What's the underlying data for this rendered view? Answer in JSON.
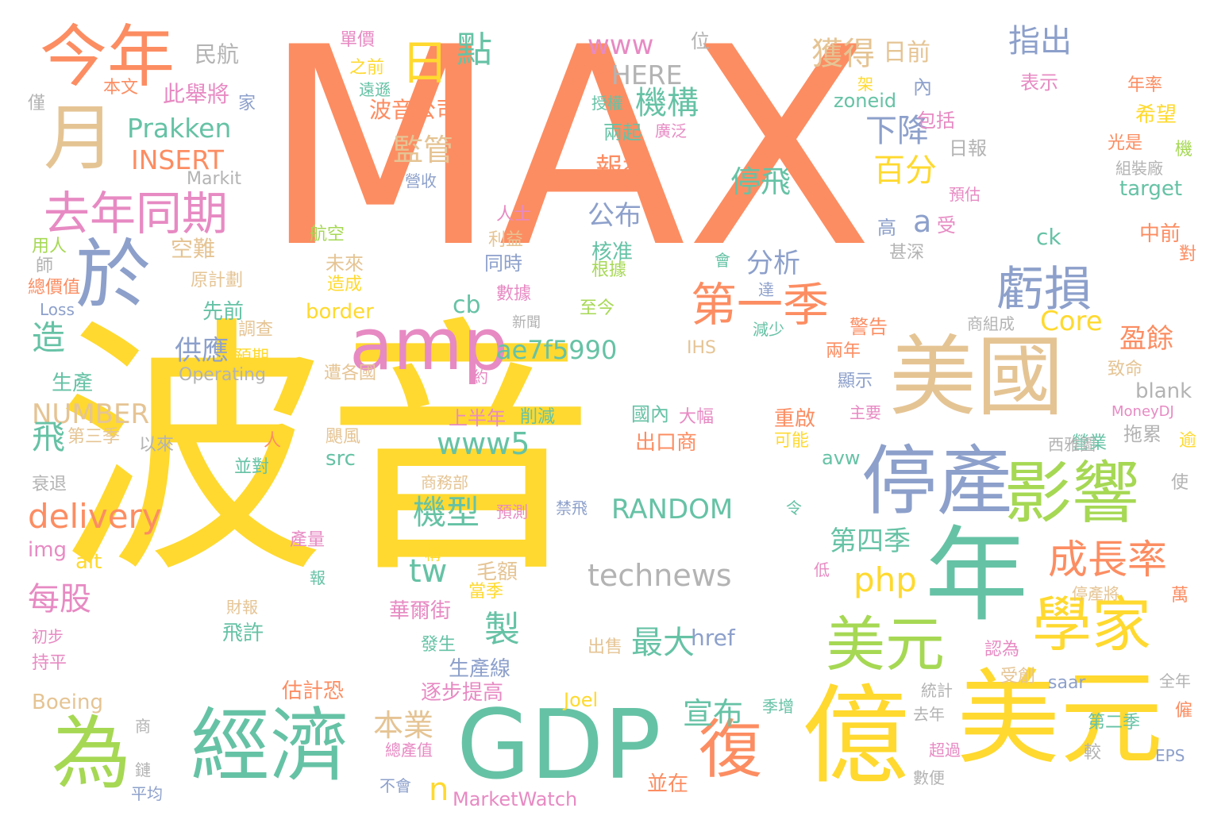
{
  "colors": {
    "orange": "#fc8d62",
    "yellow": "#ffd92f",
    "teal": "#66c2a5",
    "blue": "#8da0cb",
    "pink": "#e78ac3",
    "green": "#a6d854",
    "tan": "#e5c494",
    "gray": "#b3b3b3"
  },
  "words": [
    {
      "text": "MAX",
      "c": "orange"
    },
    {
      "text": "波音",
      "c": "yellow"
    },
    {
      "text": "美國",
      "c": "tan"
    },
    {
      "text": "億",
      "c": "yellow"
    },
    {
      "text": "美元",
      "c": "yellow"
    },
    {
      "text": "GDP",
      "c": "teal"
    },
    {
      "text": "經濟",
      "c": "teal"
    },
    {
      "text": "為",
      "c": "green"
    },
    {
      "text": "年",
      "c": "teal"
    },
    {
      "text": "停產",
      "c": "blue"
    },
    {
      "text": "影響",
      "c": "green"
    },
    {
      "text": "學家",
      "c": "yellow"
    },
    {
      "text": "美元",
      "c": "green"
    },
    {
      "text": "復",
      "c": "orange"
    },
    {
      "text": "今年",
      "c": "orange"
    },
    {
      "text": "月",
      "c": "tan"
    },
    {
      "text": "於",
      "c": "blue"
    },
    {
      "text": "日",
      "c": "yellow"
    },
    {
      "text": "去年同期",
      "c": "pink"
    },
    {
      "text": "amp",
      "c": "pink"
    },
    {
      "text": "第一季",
      "c": "orange"
    },
    {
      "text": "虧損",
      "c": "blue"
    },
    {
      "text": "成長率",
      "c": "orange"
    },
    {
      "text": "technews",
      "c": "gray"
    },
    {
      "text": "delivery",
      "c": "orange"
    },
    {
      "text": "www5",
      "c": "teal"
    },
    {
      "text": "ae7f5990",
      "c": "teal"
    },
    {
      "text": "RANDOM",
      "c": "teal"
    },
    {
      "text": "Prakken",
      "c": "teal"
    },
    {
      "text": "INSERT",
      "c": "orange"
    },
    {
      "text": "NUMBER",
      "c": "tan"
    },
    {
      "text": "www",
      "c": "pink"
    },
    {
      "text": "HERE",
      "c": "gray"
    },
    {
      "text": "機構",
      "c": "teal"
    },
    {
      "text": "點",
      "c": "teal"
    },
    {
      "text": "獲得",
      "c": "tan"
    },
    {
      "text": "日前",
      "c": "tan"
    },
    {
      "text": "指出",
      "c": "blue"
    },
    {
      "text": "下降",
      "c": "blue"
    },
    {
      "text": "百分",
      "c": "yellow"
    },
    {
      "text": "監管",
      "c": "tan"
    },
    {
      "text": "報導",
      "c": "orange"
    },
    {
      "text": "停飛",
      "c": "teal"
    },
    {
      "text": "公布",
      "c": "blue"
    },
    {
      "text": "分析",
      "c": "blue"
    },
    {
      "text": "供應",
      "c": "blue"
    },
    {
      "text": "造",
      "c": "teal"
    },
    {
      "text": "飛",
      "c": "teal"
    },
    {
      "text": "每股",
      "c": "pink"
    },
    {
      "text": "機型",
      "c": "teal"
    },
    {
      "text": "tw",
      "c": "teal"
    },
    {
      "text": "php",
      "c": "yellow"
    },
    {
      "text": "第四季",
      "c": "teal"
    },
    {
      "text": "製",
      "c": "teal"
    },
    {
      "text": "最大",
      "c": "teal"
    },
    {
      "text": "宣布",
      "c": "teal"
    },
    {
      "text": "本業",
      "c": "tan"
    },
    {
      "text": "Core",
      "c": "yellow"
    },
    {
      "text": "盈餘",
      "c": "orange"
    },
    {
      "text": "cb",
      "c": "teal"
    },
    {
      "text": "波音公司",
      "c": "orange"
    },
    {
      "text": "href",
      "c": "blue"
    },
    {
      "text": "border",
      "c": "yellow"
    },
    {
      "text": "zoneid",
      "c": "teal"
    },
    {
      "text": "target",
      "c": "teal"
    },
    {
      "text": "blank",
      "c": "gray"
    },
    {
      "text": "src",
      "c": "teal"
    },
    {
      "text": "avw",
      "c": "teal"
    },
    {
      "text": "ck",
      "c": "teal"
    },
    {
      "text": "a",
      "c": "blue"
    },
    {
      "text": "n",
      "c": "yellow"
    },
    {
      "text": "MarketWatch",
      "c": "pink"
    },
    {
      "text": "Joel",
      "c": "yellow"
    },
    {
      "text": "Boeing",
      "c": "tan"
    },
    {
      "text": "IHS",
      "c": "tan"
    },
    {
      "text": "Markit",
      "c": "gray"
    },
    {
      "text": "Operating",
      "c": "gray"
    },
    {
      "text": "Loss",
      "c": "blue"
    },
    {
      "text": "img",
      "c": "pink"
    },
    {
      "text": "alt",
      "c": "yellow"
    },
    {
      "text": "MoneyDJ",
      "c": "pink"
    },
    {
      "text": "saar",
      "c": "blue"
    },
    {
      "text": "EPS",
      "c": "blue"
    },
    {
      "text": "民航",
      "c": "gray"
    },
    {
      "text": "位",
      "c": "gray"
    },
    {
      "text": "單價",
      "c": "pink"
    },
    {
      "text": "之前",
      "c": "yellow"
    },
    {
      "text": "遠遜",
      "c": "teal"
    },
    {
      "text": "架",
      "c": "yellow"
    },
    {
      "text": "內",
      "c": "blue"
    },
    {
      "text": "表示",
      "c": "pink"
    },
    {
      "text": "年率",
      "c": "orange"
    },
    {
      "text": "本文",
      "c": "orange"
    },
    {
      "text": "此舉將",
      "c": "pink"
    },
    {
      "text": "家",
      "c": "blue"
    },
    {
      "text": "僅",
      "c": "gray"
    },
    {
      "text": "授權",
      "c": "teal"
    },
    {
      "text": "包括",
      "c": "pink"
    },
    {
      "text": "希望",
      "c": "yellow"
    },
    {
      "text": "兩起",
      "c": "teal"
    },
    {
      "text": "廣泛",
      "c": "pink"
    },
    {
      "text": "營收",
      "c": "blue"
    },
    {
      "text": "日報",
      "c": "gray"
    },
    {
      "text": "光是",
      "c": "orange"
    },
    {
      "text": "機",
      "c": "green"
    },
    {
      "text": "組裝廠",
      "c": "gray"
    },
    {
      "text": "預估",
      "c": "pink"
    },
    {
      "text": "人士",
      "c": "pink"
    },
    {
      "text": "航空",
      "c": "green"
    },
    {
      "text": "用人",
      "c": "green"
    },
    {
      "text": "空難",
      "c": "tan"
    },
    {
      "text": "核准",
      "c": "teal"
    },
    {
      "text": "受",
      "c": "pink"
    },
    {
      "text": "高",
      "c": "blue"
    },
    {
      "text": "中前",
      "c": "orange"
    },
    {
      "text": "師",
      "c": "gray"
    },
    {
      "text": "利益",
      "c": "tan"
    },
    {
      "text": "未來",
      "c": "tan"
    },
    {
      "text": "同時",
      "c": "blue"
    },
    {
      "text": "根據",
      "c": "green"
    },
    {
      "text": "甚深",
      "c": "gray"
    },
    {
      "text": "對",
      "c": "orange"
    },
    {
      "text": "原計劃",
      "c": "tan"
    },
    {
      "text": "造成",
      "c": "yellow"
    },
    {
      "text": "會",
      "c": "teal"
    },
    {
      "text": "總價值",
      "c": "orange"
    },
    {
      "text": "數據",
      "c": "pink"
    },
    {
      "text": "達",
      "c": "blue"
    },
    {
      "text": "先前",
      "c": "teal"
    },
    {
      "text": "至今",
      "c": "green"
    },
    {
      "text": "商組成",
      "c": "gray"
    },
    {
      "text": "新聞",
      "c": "gray"
    },
    {
      "text": "調查",
      "c": "tan"
    },
    {
      "text": "減少",
      "c": "teal"
    },
    {
      "text": "警告",
      "c": "orange"
    },
    {
      "text": "預期",
      "c": "yellow"
    },
    {
      "text": "兩年",
      "c": "orange"
    },
    {
      "text": "遭各國",
      "c": "tan"
    },
    {
      "text": "致命",
      "c": "tan"
    },
    {
      "text": "約",
      "c": "pink"
    },
    {
      "text": "顯示",
      "c": "blue"
    },
    {
      "text": "生產",
      "c": "teal"
    },
    {
      "text": "上半年",
      "c": "pink"
    },
    {
      "text": "削減",
      "c": "teal"
    },
    {
      "text": "國內",
      "c": "teal"
    },
    {
      "text": "大幅",
      "c": "pink"
    },
    {
      "text": "重啟",
      "c": "orange"
    },
    {
      "text": "主要",
      "c": "pink"
    },
    {
      "text": "第三季",
      "c": "tan"
    },
    {
      "text": "以來",
      "c": "gray"
    },
    {
      "text": "人",
      "c": "orange"
    },
    {
      "text": "颶風",
      "c": "tan"
    },
    {
      "text": "出口商",
      "c": "orange"
    },
    {
      "text": "可能",
      "c": "yellow"
    },
    {
      "text": "營業",
      "c": "teal"
    },
    {
      "text": "西雅圖",
      "c": "gray"
    },
    {
      "text": "逾",
      "c": "yellow"
    },
    {
      "text": "拖累",
      "c": "gray"
    },
    {
      "text": "並對",
      "c": "teal"
    },
    {
      "text": "衰退",
      "c": "gray"
    },
    {
      "text": "商務部",
      "c": "tan"
    },
    {
      "text": "使",
      "c": "gray"
    },
    {
      "text": "預測",
      "c": "pink"
    },
    {
      "text": "禁飛",
      "c": "blue"
    },
    {
      "text": "令",
      "c": "teal"
    },
    {
      "text": "產量",
      "c": "pink"
    },
    {
      "text": "稱",
      "c": "yellow"
    },
    {
      "text": "報",
      "c": "teal"
    },
    {
      "text": "低",
      "c": "pink"
    },
    {
      "text": "毛額",
      "c": "tan"
    },
    {
      "text": "當季",
      "c": "yellow"
    },
    {
      "text": "停產將",
      "c": "tan"
    },
    {
      "text": "萬",
      "c": "orange"
    },
    {
      "text": "華爾街",
      "c": "pink"
    },
    {
      "text": "財報",
      "c": "tan"
    },
    {
      "text": "飛許",
      "c": "teal"
    },
    {
      "text": "初步",
      "c": "pink"
    },
    {
      "text": "持平",
      "c": "pink"
    },
    {
      "text": "發生",
      "c": "teal"
    },
    {
      "text": "生產線",
      "c": "blue"
    },
    {
      "text": "出售",
      "c": "tan"
    },
    {
      "text": "認為",
      "c": "pink"
    },
    {
      "text": "全年",
      "c": "gray"
    },
    {
      "text": "受創",
      "c": "tan"
    },
    {
      "text": "估計恐",
      "c": "orange"
    },
    {
      "text": "逐步提高",
      "c": "pink"
    },
    {
      "text": "統計",
      "c": "gray"
    },
    {
      "text": "季增",
      "c": "teal"
    },
    {
      "text": "僱",
      "c": "orange"
    },
    {
      "text": "去年",
      "c": "gray"
    },
    {
      "text": "第二季",
      "c": "teal"
    },
    {
      "text": "商",
      "c": "gray"
    },
    {
      "text": "總產值",
      "c": "pink"
    },
    {
      "text": "超過",
      "c": "pink"
    },
    {
      "text": "較",
      "c": "gray"
    },
    {
      "text": "鏈",
      "c": "gray"
    },
    {
      "text": "平均",
      "c": "blue"
    },
    {
      "text": "不會",
      "c": "blue"
    },
    {
      "text": "並在",
      "c": "orange"
    },
    {
      "text": "數便",
      "c": "gray"
    }
  ]
}
